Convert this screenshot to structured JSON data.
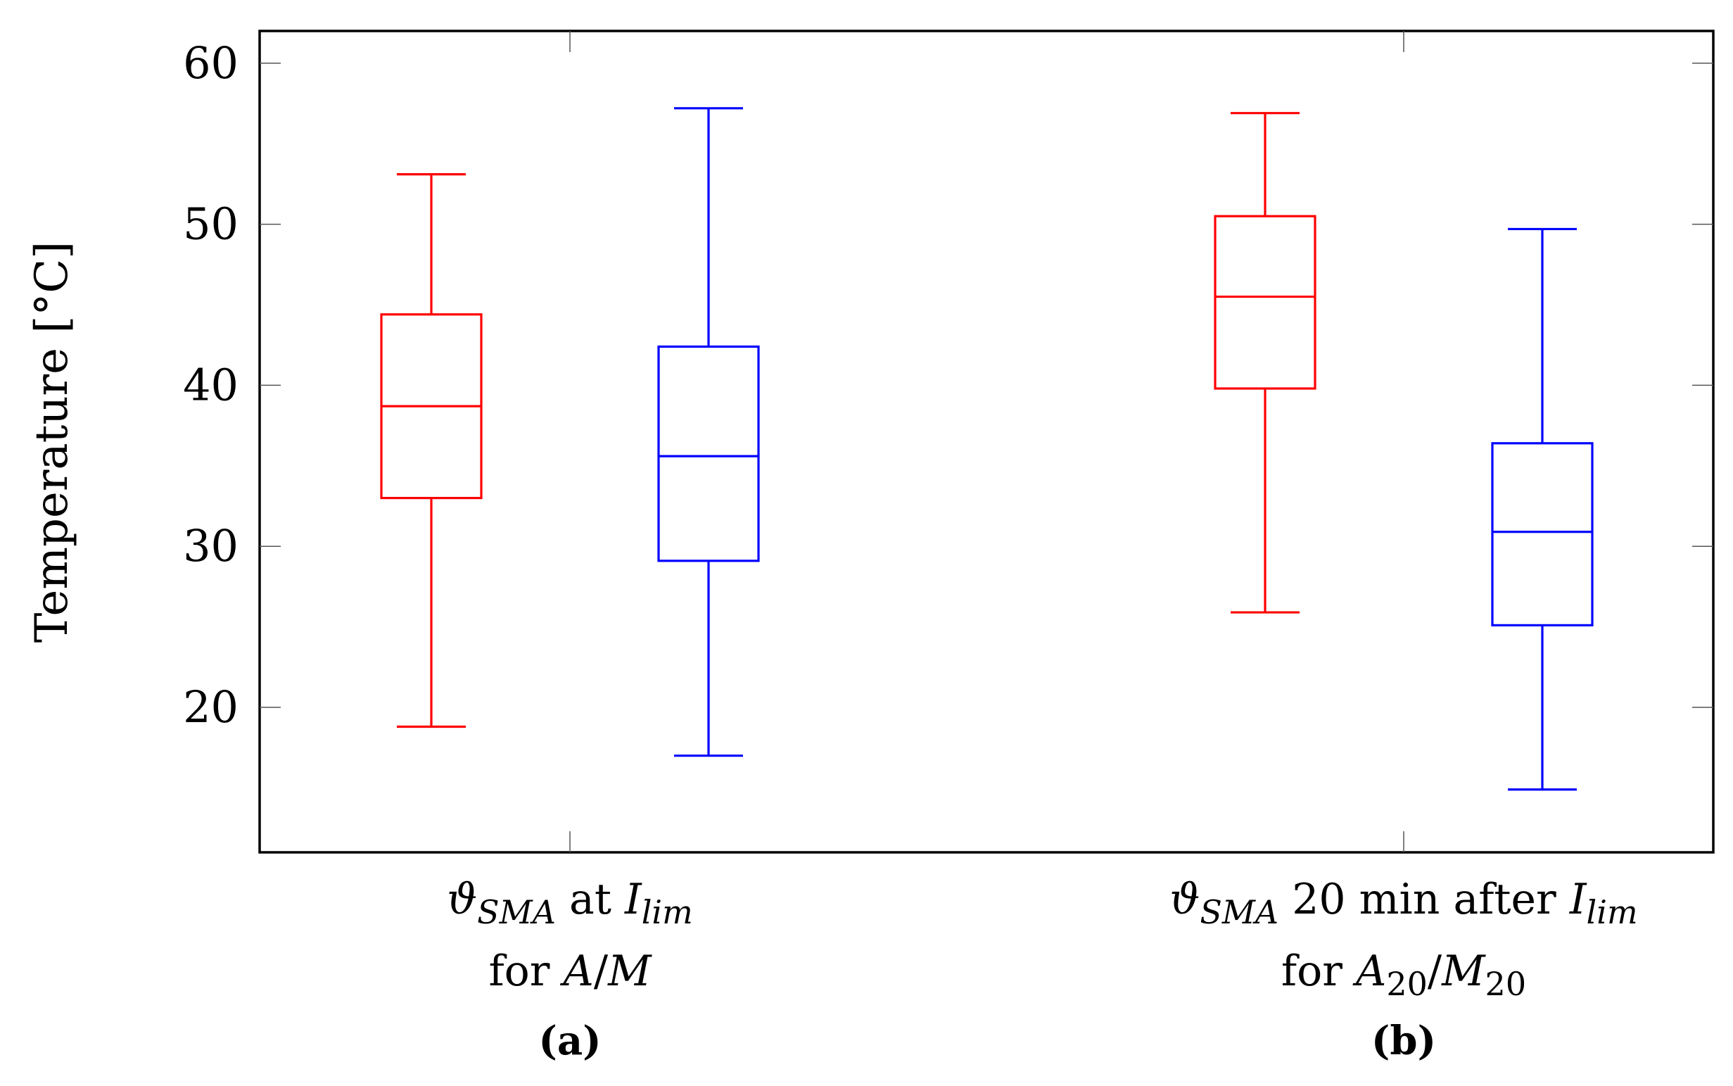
{
  "chart_data": {
    "type": "box",
    "ylabel": "Temperature [°C]",
    "ylim": [
      11,
      62
    ],
    "yticks": [
      20,
      30,
      40,
      50,
      60
    ],
    "grid": false,
    "groups": [
      {
        "line1": {
          "sym": "ϑ",
          "sub1": "SMA",
          "mid": " at ",
          "sym2": "I",
          "sub2": "lim"
        },
        "line2": {
          "pre": "for ",
          "a": "A",
          "sep": "/",
          "b": "M",
          "sub": ""
        },
        "sublabel": "(a)"
      },
      {
        "line1": {
          "sym": "ϑ",
          "sub1": "SMA",
          "mid": " 20 min after ",
          "sym2": "I",
          "sub2": "lim"
        },
        "line2": {
          "pre": "for ",
          "a": "A",
          "sep": "/",
          "b": "M",
          "sub": "20"
        },
        "sublabel": "(b)"
      }
    ],
    "boxes": [
      {
        "group": 0,
        "color": "#ff0000",
        "whisker_low": 18.8,
        "q1": 33.0,
        "median": 38.7,
        "q3": 44.4,
        "whisker_high": 53.1
      },
      {
        "group": 0,
        "color": "#0000ff",
        "whisker_low": 17.0,
        "q1": 29.1,
        "median": 35.6,
        "q3": 42.4,
        "whisker_high": 57.2
      },
      {
        "group": 1,
        "color": "#ff0000",
        "whisker_low": 25.9,
        "q1": 39.8,
        "median": 45.5,
        "q3": 50.5,
        "whisker_high": 56.9
      },
      {
        "group": 1,
        "color": "#0000ff",
        "whisker_low": 14.9,
        "q1": 25.1,
        "median": 30.9,
        "q3": 36.4,
        "whisker_high": 49.7
      }
    ]
  }
}
